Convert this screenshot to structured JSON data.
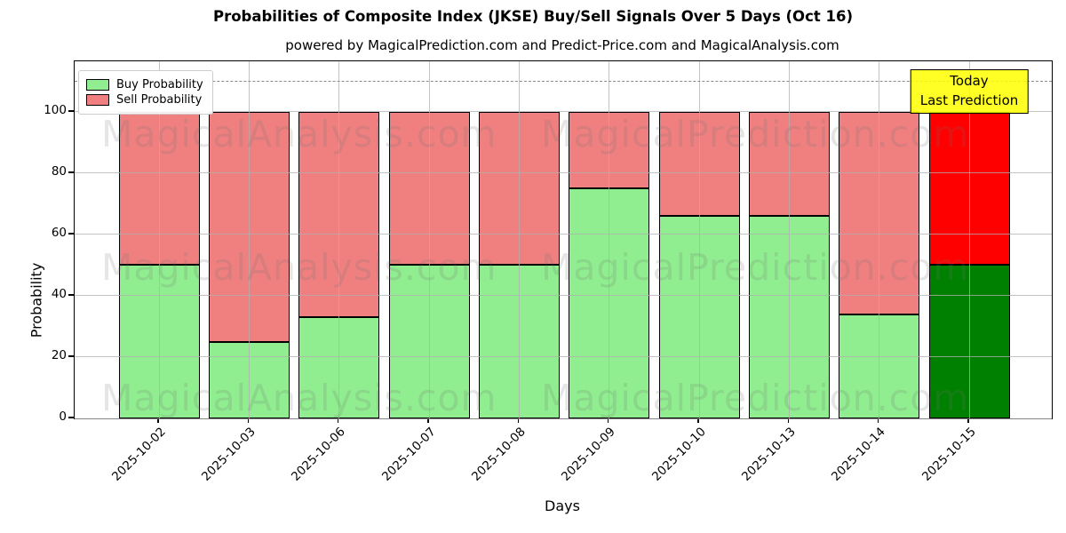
{
  "title": "Probabilities of Composite Index (JKSE) Buy/Sell Signals Over 5 Days (Oct 16)",
  "subtitle": "powered by MagicalPrediction.com and Predict-Price.com and MagicalAnalysis.com",
  "legend": [
    {
      "label": "Buy Probability",
      "color": "#90ee90"
    },
    {
      "label": "Sell Probability",
      "color": "#f08080"
    }
  ],
  "annotation": {
    "line1": "Today",
    "line2": "Last Prediction",
    "bg_color": "#ffff00"
  },
  "watermarks": {
    "left_text": "MagicalAnalysis.com",
    "right_text": "MagicalPrediction.com"
  },
  "chart_data": {
    "type": "bar",
    "stacked": true,
    "title": "Probabilities of Composite Index (JKSE) Buy/Sell Signals Over 5 Days (Oct 16)",
    "xlabel": "Days",
    "ylabel": "Probability",
    "categories": [
      "2025-10-02",
      "2025-10-03",
      "2025-10-06",
      "2025-10-07",
      "2025-10-08",
      "2025-10-09",
      "2025-10-10",
      "2025-10-13",
      "2025-10-14",
      "2025-10-15"
    ],
    "series": [
      {
        "name": "Buy Probability",
        "color": "#90ee90",
        "today_color": "#008000",
        "values": [
          50,
          25,
          33,
          50,
          50,
          75,
          66,
          66,
          34,
          50
        ]
      },
      {
        "name": "Sell Probability",
        "color": "#f08080",
        "today_color": "#ff0000",
        "values": [
          50,
          75,
          67,
          50,
          50,
          25,
          34,
          34,
          66,
          50
        ]
      }
    ],
    "ylim": [
      0,
      116.5
    ],
    "yticks": [
      0,
      20,
      40,
      60,
      80,
      100
    ],
    "dashed_reference_line_y": 110,
    "grid": true,
    "legend_position": "upper-left",
    "bar_edge_color": "#000000",
    "today_bar_index": 9
  }
}
